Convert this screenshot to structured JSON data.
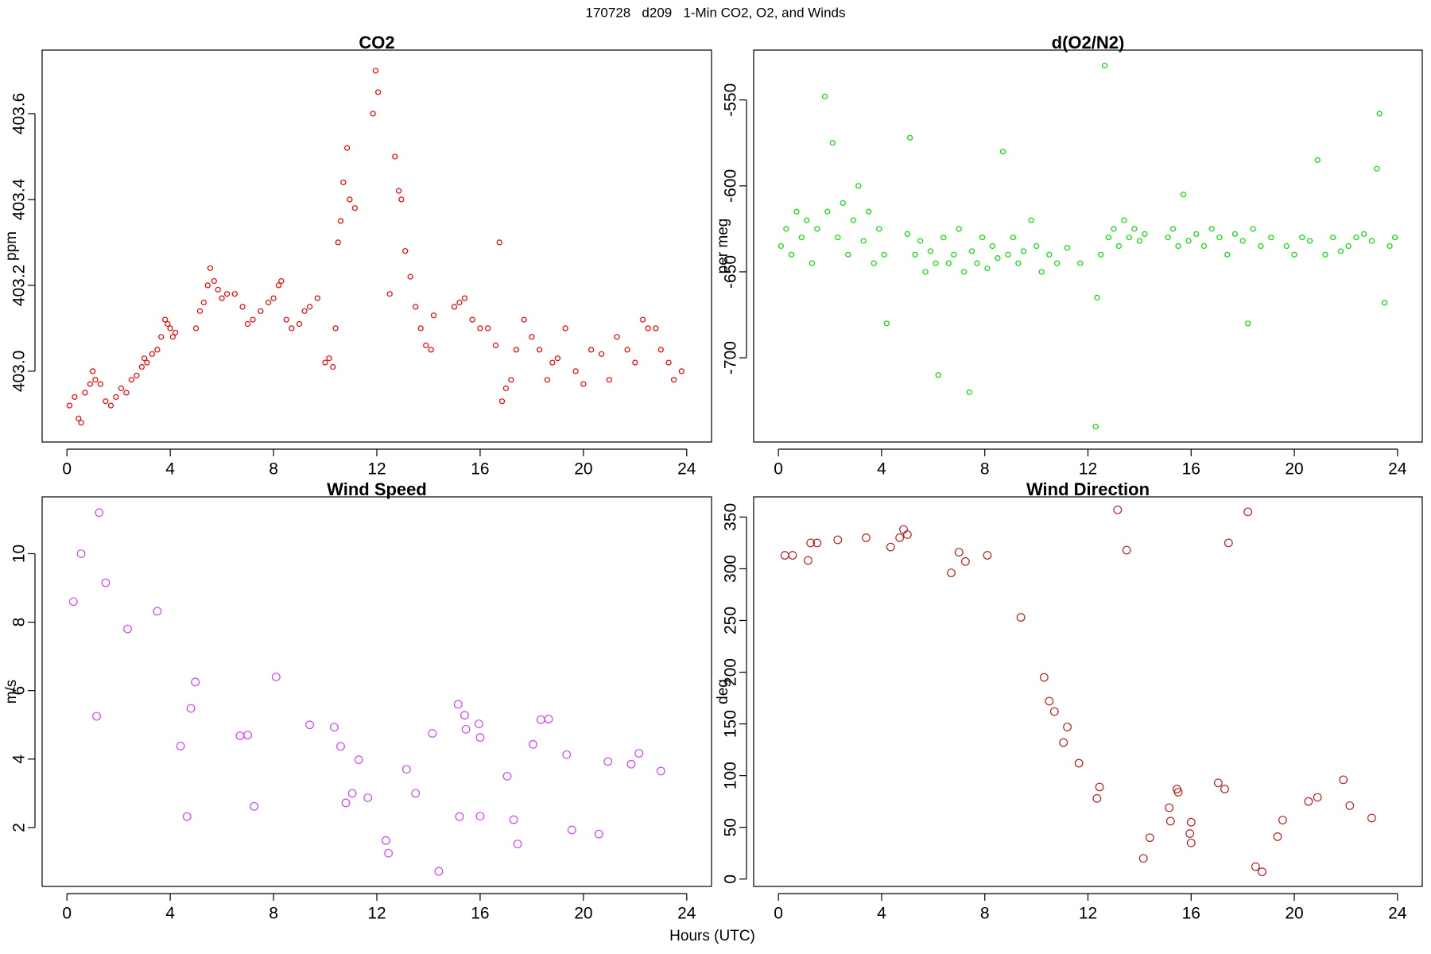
{
  "title": "170728   d209   1-Min CO2, O2, and Winds",
  "xlabel": "Hours (UTC)",
  "chart_data": [
    {
      "type": "scatter",
      "title": "CO2",
      "ylabel": "ppm",
      "color": "#ee0000",
      "x": [
        0.1,
        0.3,
        0.45,
        0.55,
        0.7,
        0.9,
        1.0,
        1.1,
        1.3,
        1.5,
        1.7,
        1.9,
        2.1,
        2.3,
        2.5,
        2.7,
        2.9,
        3.0,
        3.1,
        3.3,
        3.5,
        3.65,
        3.8,
        3.9,
        4.0,
        4.1,
        4.2,
        5.0,
        5.15,
        5.3,
        5.45,
        5.55,
        5.7,
        5.85,
        6.0,
        6.2,
        6.5,
        6.8,
        7.0,
        7.2,
        7.5,
        7.8,
        8.0,
        8.2,
        8.3,
        8.5,
        8.7,
        9.0,
        9.2,
        9.4,
        9.7,
        10.0,
        10.15,
        10.3,
        10.4,
        10.5,
        10.6,
        10.7,
        10.85,
        10.95,
        11.15,
        11.85,
        11.95,
        12.05,
        12.5,
        12.7,
        12.85,
        12.95,
        13.1,
        13.3,
        13.5,
        13.7,
        13.9,
        14.1,
        14.2,
        15.0,
        15.2,
        15.4,
        15.7,
        16.0,
        16.3,
        16.6,
        16.75,
        16.85,
        17.0,
        17.2,
        17.4,
        17.7,
        18.0,
        18.3,
        18.6,
        18.8,
        19.0,
        19.3,
        19.7,
        20.0,
        20.3,
        20.7,
        21.0,
        21.3,
        21.7,
        22.0,
        22.3,
        22.5,
        22.8,
        23.0,
        23.3,
        23.5,
        23.8
      ],
      "values": [
        402.92,
        402.94,
        402.89,
        402.88,
        402.95,
        402.97,
        403.0,
        402.98,
        402.97,
        402.93,
        402.92,
        402.94,
        402.96,
        402.95,
        402.98,
        402.99,
        403.01,
        403.03,
        403.02,
        403.04,
        403.05,
        403.08,
        403.12,
        403.11,
        403.1,
        403.08,
        403.09,
        403.1,
        403.14,
        403.16,
        403.2,
        403.24,
        403.21,
        403.19,
        403.17,
        403.18,
        403.18,
        403.15,
        403.11,
        403.12,
        403.14,
        403.16,
        403.17,
        403.2,
        403.21,
        403.12,
        403.1,
        403.11,
        403.14,
        403.15,
        403.17,
        403.02,
        403.03,
        403.01,
        403.1,
        403.3,
        403.35,
        403.44,
        403.52,
        403.4,
        403.38,
        403.6,
        403.7,
        403.65,
        403.18,
        403.5,
        403.42,
        403.4,
        403.28,
        403.22,
        403.15,
        403.1,
        403.06,
        403.05,
        403.13,
        403.15,
        403.16,
        403.17,
        403.12,
        403.1,
        403.1,
        403.06,
        403.3,
        402.93,
        402.96,
        402.98,
        403.05,
        403.12,
        403.08,
        403.05,
        402.98,
        403.02,
        403.03,
        403.1,
        403.0,
        402.97,
        403.05,
        403.04,
        402.98,
        403.08,
        403.05,
        403.02,
        403.12,
        403.1,
        403.1,
        403.05,
        403.02,
        402.98,
        403.0
      ],
      "xlim": [
        -0.96,
        24.96
      ],
      "ylim": [
        402.835,
        403.748
      ],
      "xticks": [
        0,
        4,
        8,
        12,
        16,
        20,
        24
      ],
      "yticks": [
        {
          "value": 403,
          "label": "403.0"
        },
        403.2,
        403.4,
        403.6
      ]
    },
    {
      "type": "scatter",
      "title": "d(O2/N2)",
      "ylabel": "per meg",
      "color": "#00dd00",
      "x": [
        0.1,
        0.3,
        0.5,
        0.7,
        0.9,
        1.1,
        1.3,
        1.5,
        1.8,
        1.9,
        2.1,
        2.3,
        2.5,
        2.7,
        2.9,
        3.1,
        3.3,
        3.5,
        3.7,
        3.9,
        4.1,
        4.2,
        5.0,
        5.1,
        5.3,
        5.5,
        5.7,
        5.9,
        6.1,
        6.2,
        6.4,
        6.6,
        6.8,
        7.0,
        7.2,
        7.4,
        7.5,
        7.7,
        7.9,
        8.1,
        8.3,
        8.5,
        8.7,
        8.9,
        9.1,
        9.3,
        9.5,
        9.8,
        10.0,
        10.2,
        10.5,
        10.8,
        11.2,
        11.7,
        12.3,
        12.35,
        12.5,
        12.65,
        12.8,
        13.0,
        13.2,
        13.4,
        13.6,
        13.8,
        14.0,
        14.2,
        15.1,
        15.3,
        15.5,
        15.7,
        15.9,
        16.2,
        16.5,
        16.8,
        17.1,
        17.4,
        17.7,
        18.0,
        18.2,
        18.4,
        18.7,
        19.1,
        19.7,
        20.0,
        20.3,
        20.6,
        20.9,
        21.2,
        21.5,
        21.8,
        22.1,
        22.4,
        22.7,
        23.0,
        23.2,
        23.3,
        23.5,
        23.7,
        23.9
      ],
      "values": [
        -635,
        -625,
        -640,
        -615,
        -630,
        -620,
        -645,
        -625,
        -548,
        -615,
        -575,
        -630,
        -610,
        -640,
        -620,
        -600,
        -632,
        -615,
        -645,
        -625,
        -640,
        -680,
        -628,
        -572,
        -640,
        -632,
        -650,
        -638,
        -645,
        -710,
        -630,
        -645,
        -640,
        -625,
        -650,
        -720,
        -638,
        -645,
        -630,
        -648,
        -635,
        -642,
        -580,
        -640,
        -630,
        -645,
        -638,
        -620,
        -635,
        -650,
        -640,
        -645,
        -636,
        -645,
        -740,
        -665,
        -640,
        -530,
        -630,
        -625,
        -635,
        -620,
        -630,
        -625,
        -632,
        -628,
        -630,
        -625,
        -635,
        -605,
        -632,
        -628,
        -635,
        -625,
        -630,
        -640,
        -628,
        -632,
        -680,
        -625,
        -635,
        -630,
        -635,
        -640,
        -630,
        -632,
        -585,
        -640,
        -630,
        -638,
        -635,
        -630,
        -628,
        -632,
        -590,
        -558,
        -668,
        -635,
        -630
      ],
      "xlim": [
        -0.96,
        24.96
      ],
      "ylim": [
        -749,
        -521
      ],
      "xticks": [
        0,
        4,
        8,
        12,
        16,
        20,
        24
      ],
      "yticks": [
        -700,
        -650,
        -600,
        -550
      ]
    },
    {
      "type": "scatter",
      "title": "Wind Speed",
      "ylabel": "m/s",
      "color": "#cc44ff",
      "x": [
        0.25,
        0.55,
        1.15,
        1.25,
        1.5,
        2.35,
        3.5,
        4.4,
        4.65,
        4.8,
        4.97,
        6.7,
        7.0,
        7.25,
        8.1,
        9.4,
        10.35,
        10.6,
        10.8,
        11.05,
        11.3,
        11.65,
        12.35,
        12.45,
        13.15,
        13.5,
        14.15,
        14.4,
        15.15,
        15.2,
        15.4,
        15.45,
        15.95,
        16.0,
        16.0,
        17.05,
        17.3,
        17.45,
        18.05,
        18.35,
        18.65,
        19.35,
        19.55,
        20.6,
        20.95,
        21.85,
        22.15,
        23.0
      ],
      "values": [
        8.6,
        10.0,
        5.25,
        11.2,
        9.15,
        7.8,
        8.32,
        4.38,
        2.32,
        5.48,
        6.25,
        4.68,
        4.7,
        2.62,
        6.4,
        5.0,
        4.93,
        4.37,
        2.72,
        3.0,
        3.98,
        2.87,
        1.62,
        1.25,
        3.7,
        3.0,
        4.75,
        0.72,
        5.6,
        2.32,
        5.28,
        4.87,
        5.03,
        4.63,
        2.33,
        3.5,
        2.23,
        1.52,
        4.43,
        5.15,
        5.17,
        4.13,
        1.93,
        1.81,
        3.93,
        3.85,
        4.17,
        3.65
      ],
      "xlim": [
        -0.96,
        24.96
      ],
      "ylim": [
        0.28,
        11.66
      ],
      "xticks": [
        0,
        4,
        8,
        12,
        16,
        20,
        24
      ],
      "yticks": [
        2,
        4,
        6,
        8,
        10
      ]
    },
    {
      "type": "scatter",
      "title": "Wind Direction",
      "ylabel": "deg",
      "color": "#b22222",
      "x": [
        0.25,
        0.55,
        1.15,
        1.25,
        1.5,
        2.3,
        3.4,
        4.35,
        4.7,
        4.85,
        5.0,
        6.7,
        7.0,
        7.25,
        8.1,
        9.4,
        10.3,
        10.5,
        10.7,
        11.05,
        11.2,
        11.65,
        12.35,
        12.45,
        13.15,
        13.5,
        14.15,
        14.4,
        15.15,
        15.2,
        15.45,
        15.5,
        15.95,
        16.0,
        16.0,
        17.05,
        17.3,
        17.45,
        18.2,
        18.5,
        18.75,
        19.35,
        19.55,
        20.55,
        20.9,
        21.9,
        22.15,
        23.0
      ],
      "values": [
        313,
        313,
        308,
        325,
        325,
        328,
        330,
        321,
        330,
        338,
        333,
        296,
        316,
        307,
        313,
        253,
        195,
        172,
        162,
        132,
        147,
        112,
        78,
        89,
        357,
        318,
        20,
        40,
        69,
        56,
        87,
        84,
        44,
        55,
        35,
        93,
        87,
        325,
        355,
        12,
        7,
        41,
        57,
        75,
        79,
        96,
        71,
        59
      ],
      "xlim": [
        -0.96,
        24.96
      ],
      "ylim": [
        -7.1,
        369.5
      ],
      "xticks": [
        0,
        4,
        8,
        12,
        16,
        20,
        24
      ],
      "yticks": [
        0,
        50,
        100,
        150,
        200,
        250,
        300,
        350
      ]
    }
  ]
}
